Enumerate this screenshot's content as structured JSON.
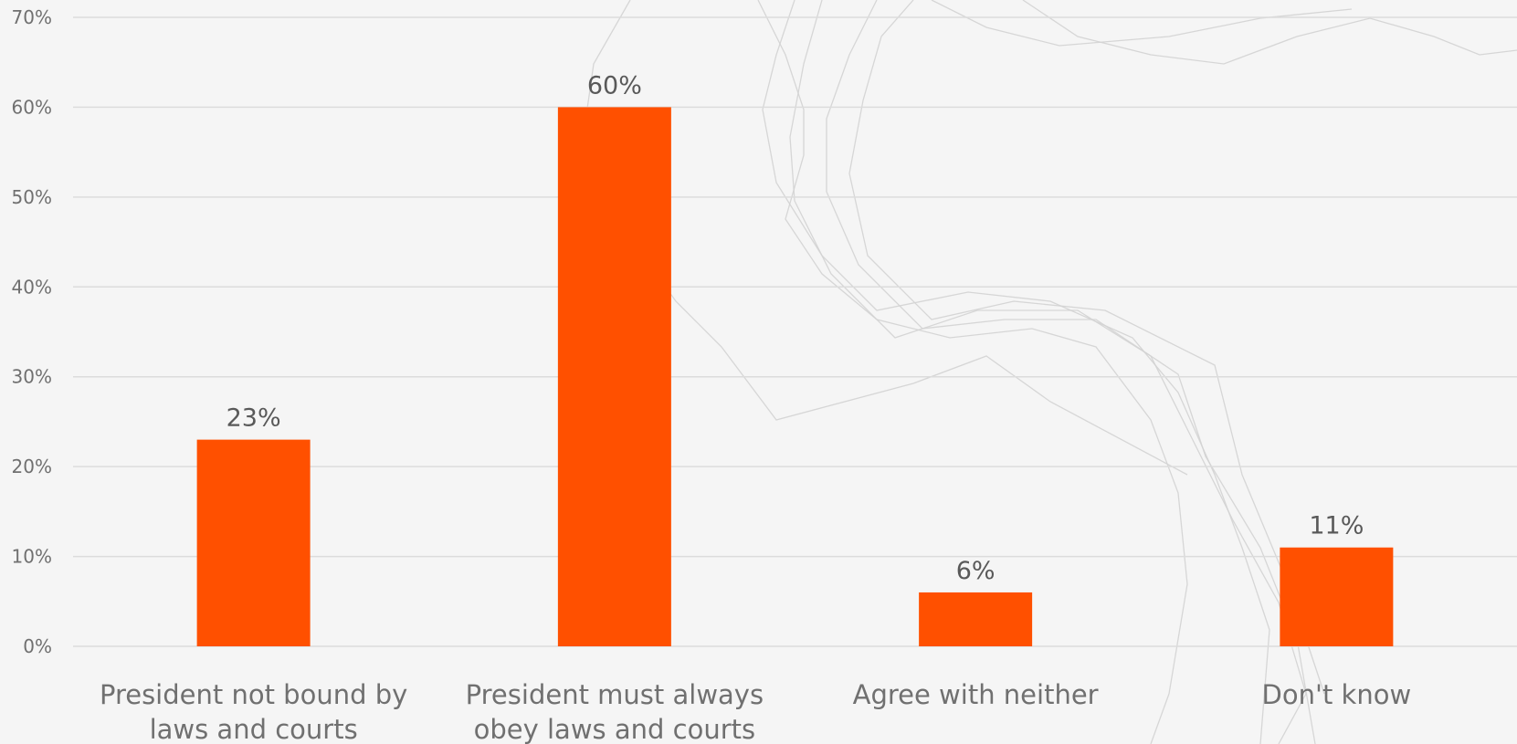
{
  "chart_data": {
    "type": "bar",
    "categories": [
      [
        "President not bound by",
        "laws and courts"
      ],
      [
        "President must always",
        "obey laws and courts"
      ],
      [
        "Agree with neither"
      ],
      [
        "Don't know"
      ]
    ],
    "values": [
      23,
      60,
      6,
      11
    ],
    "value_labels": [
      "23%",
      "60%",
      "6%",
      "11%"
    ],
    "ylim": [
      0,
      70
    ],
    "y_ticks": [
      0,
      10,
      20,
      30,
      40,
      50,
      60,
      70
    ],
    "y_tick_labels": [
      "0%",
      "10%",
      "20%",
      "30%",
      "40%",
      "50%",
      "60%",
      "70%"
    ],
    "grid": true,
    "legend": "none",
    "bar_color": "#ff5000",
    "title": "",
    "xlabel": "",
    "ylabel": ""
  }
}
